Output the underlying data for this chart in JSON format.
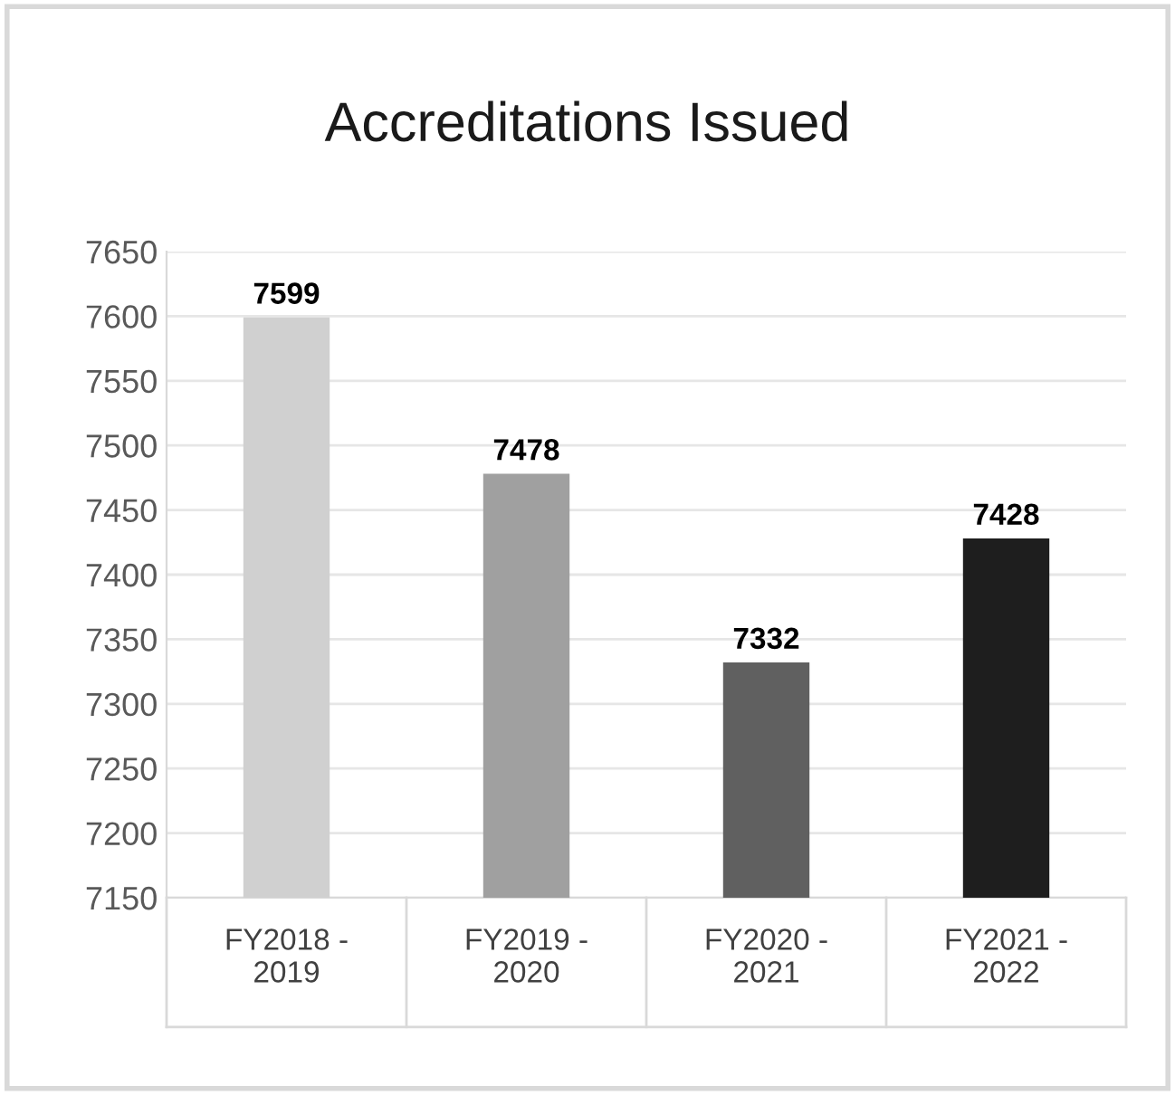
{
  "chart_data": {
    "type": "bar",
    "title": "Accreditations Issued",
    "categories": [
      "FY2018 - 2019",
      "FY2019 - 2020",
      "FY2020 - 2021",
      "FY2021 - 2022"
    ],
    "values": [
      7599,
      7478,
      7332,
      7428
    ],
    "colors": [
      "#d0d0d0",
      "#a0a0a0",
      "#606060",
      "#1e1e1e"
    ],
    "ylim": [
      7150,
      7650
    ],
    "yticks": [
      7150,
      7200,
      7250,
      7300,
      7350,
      7400,
      7450,
      7500,
      7550,
      7600,
      7650
    ],
    "grid": "y",
    "data_labels": true
  }
}
